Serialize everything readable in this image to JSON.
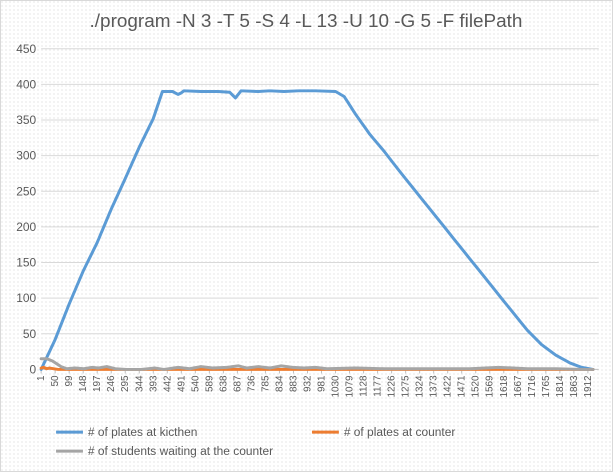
{
  "chart_data": {
    "type": "line",
    "title": "./program -N 3 -T 5 -S 4 -L 13 -U 10 -G 5 -F filePath",
    "xlabel": "",
    "ylabel": "",
    "ylim": [
      0,
      450
    ],
    "yticks": [
      0,
      50,
      100,
      150,
      200,
      250,
      300,
      350,
      400,
      450
    ],
    "xlim": [
      1,
      1950
    ],
    "xticks": [
      1,
      50,
      99,
      148,
      197,
      246,
      295,
      344,
      393,
      442,
      491,
      540,
      589,
      638,
      687,
      736,
      785,
      834,
      883,
      932,
      981,
      1030,
      1079,
      1128,
      1177,
      1226,
      1275,
      1324,
      1373,
      1422,
      1471,
      1520,
      1569,
      1618,
      1667,
      1716,
      1765,
      1814,
      1863,
      1912
    ],
    "xtick_labels": [
      "1",
      "50",
      "99",
      "148",
      "197",
      "246",
      "295",
      "344",
      "393",
      "442",
      "491",
      "540",
      "589",
      "638",
      "687",
      "736",
      "785",
      "834",
      "883",
      "932",
      "981",
      "1030",
      "1079",
      "1128",
      "1177",
      "1226",
      "1275",
      "1324",
      "1373",
      "1422",
      "1471",
      "1520",
      "1569",
      "1618",
      "1667",
      "1716",
      "1765",
      "1814",
      "1863",
      "1912"
    ],
    "grid": true,
    "legend_position": "bottom",
    "series": [
      {
        "name": "# of plates at kicthen",
        "color": "#5b9bd5",
        "points": [
          [
            1,
            0
          ],
          [
            50,
            42
          ],
          [
            99,
            92
          ],
          [
            148,
            138
          ],
          [
            197,
            178
          ],
          [
            246,
            225
          ],
          [
            295,
            268
          ],
          [
            344,
            312
          ],
          [
            393,
            352
          ],
          [
            425,
            390
          ],
          [
            460,
            390
          ],
          [
            480,
            386
          ],
          [
            490,
            388
          ],
          [
            500,
            391
          ],
          [
            560,
            390
          ],
          [
            620,
            390
          ],
          [
            660,
            389
          ],
          [
            680,
            381
          ],
          [
            700,
            391
          ],
          [
            760,
            390
          ],
          [
            800,
            391
          ],
          [
            850,
            390
          ],
          [
            900,
            391
          ],
          [
            960,
            391
          ],
          [
            1030,
            390
          ],
          [
            1060,
            383
          ],
          [
            1100,
            358
          ],
          [
            1150,
            330
          ],
          [
            1200,
            306
          ],
          [
            1250,
            280
          ],
          [
            1300,
            255
          ],
          [
            1350,
            230
          ],
          [
            1400,
            205
          ],
          [
            1450,
            180
          ],
          [
            1500,
            155
          ],
          [
            1550,
            130
          ],
          [
            1600,
            105
          ],
          [
            1650,
            80
          ],
          [
            1700,
            55
          ],
          [
            1750,
            35
          ],
          [
            1800,
            20
          ],
          [
            1850,
            9
          ],
          [
            1890,
            3
          ],
          [
            1930,
            0
          ]
        ]
      },
      {
        "name": "# of plates at counter",
        "color": "#ed7d31",
        "points": [
          [
            1,
            2
          ],
          [
            10,
            3
          ],
          [
            20,
            1
          ],
          [
            30,
            2
          ],
          [
            60,
            0
          ],
          [
            200,
            0
          ],
          [
            400,
            0
          ],
          [
            600,
            0
          ],
          [
            800,
            0
          ],
          [
            1000,
            0
          ],
          [
            1200,
            0
          ],
          [
            1400,
            0
          ],
          [
            1600,
            0
          ],
          [
            1800,
            0
          ],
          [
            1930,
            0
          ]
        ]
      },
      {
        "name": "# of students waiting at the counter",
        "color": "#a5a5a5",
        "points": [
          [
            1,
            15
          ],
          [
            20,
            15
          ],
          [
            40,
            12
          ],
          [
            70,
            4
          ],
          [
            90,
            1
          ],
          [
            120,
            2
          ],
          [
            150,
            1
          ],
          [
            180,
            3
          ],
          [
            200,
            2
          ],
          [
            230,
            4
          ],
          [
            260,
            1
          ],
          [
            300,
            0
          ],
          [
            350,
            0
          ],
          [
            400,
            2
          ],
          [
            430,
            0
          ],
          [
            480,
            3
          ],
          [
            520,
            1
          ],
          [
            560,
            4
          ],
          [
            600,
            2
          ],
          [
            650,
            3
          ],
          [
            690,
            5
          ],
          [
            720,
            2
          ],
          [
            760,
            4
          ],
          [
            800,
            2
          ],
          [
            840,
            5
          ],
          [
            880,
            3
          ],
          [
            920,
            2
          ],
          [
            960,
            3
          ],
          [
            1000,
            1
          ],
          [
            1100,
            2
          ],
          [
            1200,
            1
          ],
          [
            1300,
            1
          ],
          [
            1400,
            1
          ],
          [
            1500,
            1
          ],
          [
            1600,
            3
          ],
          [
            1700,
            1
          ],
          [
            1800,
            1
          ],
          [
            1900,
            0
          ],
          [
            1930,
            0
          ]
        ]
      }
    ]
  }
}
